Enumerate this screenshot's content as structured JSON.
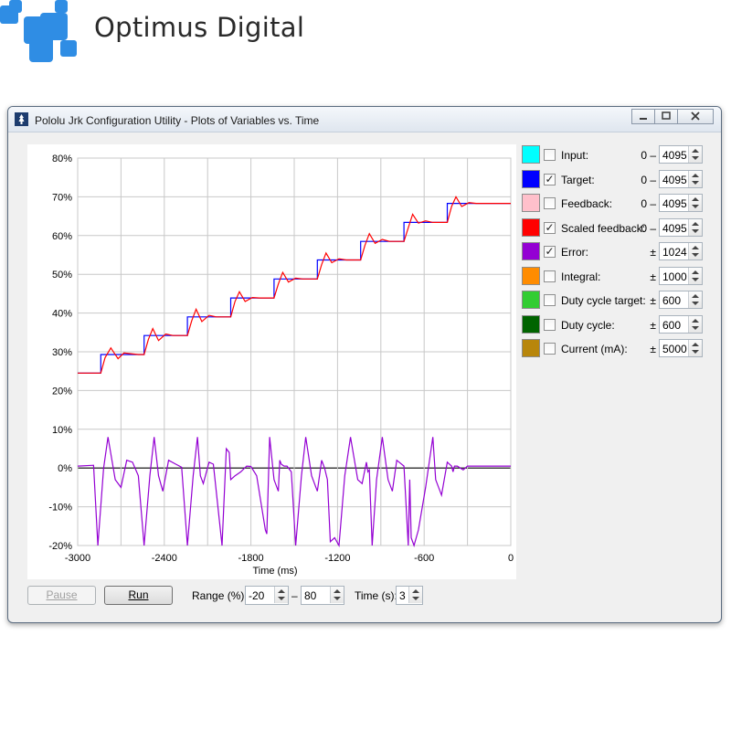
{
  "brand": {
    "name": "Optimus Digital",
    "logo_icon": "cross-pixel-logo",
    "logo_color": "#2f8de4"
  },
  "window": {
    "title": "Pololu Jrk Configuration Utility - Plots of Variables vs. Time",
    "icon": "pololu-app-icon",
    "controls": {
      "minimize_icon": "minimize-icon",
      "maximize_icon": "maximize-icon",
      "close_icon": "close-icon"
    }
  },
  "series": [
    {
      "label": "Input:",
      "checked": false,
      "color": "#00ffff",
      "prefix": "0 –",
      "value": "4095"
    },
    {
      "label": "Target:",
      "checked": true,
      "color": "#0000ff",
      "prefix": "0 –",
      "value": "4095"
    },
    {
      "label": "Feedback:",
      "checked": false,
      "color": "#ffc0cb",
      "prefix": "0 –",
      "value": "4095"
    },
    {
      "label": "Scaled feedback:",
      "checked": true,
      "color": "#ff0000",
      "prefix": "0 –",
      "value": "4095"
    },
    {
      "label": "Error:",
      "checked": true,
      "color": "#9400d3",
      "prefix": "±",
      "value": "1024"
    },
    {
      "label": "Integral:",
      "checked": false,
      "color": "#ff8c00",
      "prefix": "±",
      "value": "1000"
    },
    {
      "label": "Duty cycle target:",
      "checked": false,
      "color": "#32cd32",
      "prefix": "±",
      "value": "600"
    },
    {
      "label": "Duty cycle:",
      "checked": false,
      "color": "#006400",
      "prefix": "±",
      "value": "600"
    },
    {
      "label": "Current (mA):",
      "checked": false,
      "color": "#b8860b",
      "prefix": "±",
      "value": "5000"
    }
  ],
  "controls": {
    "pause_label": "Pause",
    "run_label": "Run",
    "range_label": "Range (%):",
    "range_min": "-20",
    "range_sep": "–",
    "range_max": "80",
    "time_label": "Time (s):",
    "time_value": "3"
  },
  "chart_data": {
    "type": "line",
    "xlabel": "Time (ms)",
    "ylabel": "",
    "xlim": [
      -3000,
      0
    ],
    "ylim": [
      -20,
      80
    ],
    "x_ticks": [
      "-3000",
      "-2400",
      "-1800",
      "-1200",
      "-600",
      "0"
    ],
    "y_ticks": [
      "80%",
      "70%",
      "60%",
      "50%",
      "40%",
      "30%",
      "20%",
      "10%",
      "0%",
      "-10%",
      "-20%"
    ],
    "grid": true,
    "series": [
      {
        "name": "Target",
        "color": "#0000ff",
        "x": [
          -3000,
          -2840,
          -2840,
          -2540,
          -2540,
          -2240,
          -2240,
          -1940,
          -1940,
          -1640,
          -1640,
          -1340,
          -1340,
          -1040,
          -1040,
          -740,
          -740,
          -440,
          -440,
          0
        ],
        "y": [
          24.5,
          24.5,
          29.3,
          29.3,
          34.2,
          34.2,
          39.0,
          39.0,
          43.9,
          43.9,
          48.8,
          48.8,
          53.7,
          53.7,
          58.5,
          58.5,
          63.4,
          63.4,
          68.3,
          68.3
        ]
      },
      {
        "name": "Scaled feedback",
        "color": "#ff0000",
        "x": [
          -3000,
          -2840,
          -2810,
          -2770,
          -2720,
          -2680,
          -2630,
          -2580,
          -2540,
          -2510,
          -2480,
          -2440,
          -2390,
          -2340,
          -2290,
          -2240,
          -2210,
          -2180,
          -2140,
          -2090,
          -2040,
          -1990,
          -1940,
          -1910,
          -1880,
          -1840,
          -1790,
          -1740,
          -1690,
          -1640,
          -1610,
          -1580,
          -1540,
          -1490,
          -1440,
          -1390,
          -1340,
          -1310,
          -1280,
          -1240,
          -1190,
          -1140,
          -1090,
          -1040,
          -1010,
          -980,
          -940,
          -890,
          -840,
          -790,
          -740,
          -710,
          -680,
          -640,
          -590,
          -540,
          -490,
          -440,
          -410,
          -380,
          -340,
          -290,
          -240,
          0
        ],
        "y": [
          24.5,
          24.5,
          28.5,
          31.0,
          28.2,
          29.7,
          29.5,
          29.3,
          29.3,
          33.2,
          36.0,
          32.9,
          34.6,
          34.2,
          34.2,
          34.2,
          38.0,
          41.0,
          37.8,
          39.4,
          39.0,
          39.0,
          39.0,
          43.0,
          45.5,
          43.0,
          44.0,
          43.9,
          43.9,
          43.9,
          47.5,
          50.5,
          48.0,
          49.0,
          48.8,
          48.8,
          48.8,
          52.5,
          55.5,
          53.0,
          54.0,
          53.7,
          53.7,
          53.7,
          57.5,
          60.5,
          58.0,
          59.0,
          58.5,
          58.5,
          58.5,
          62.0,
          65.5,
          63.2,
          63.8,
          63.4,
          63.4,
          63.4,
          67.5,
          70.0,
          67.5,
          68.5,
          68.3,
          68.3
        ]
      },
      {
        "name": "Error",
        "color": "#9400d3",
        "x": [
          -3000,
          -2890,
          -2860,
          -2820,
          -2790,
          -2740,
          -2700,
          -2660,
          -2620,
          -2580,
          -2540,
          -2500,
          -2470,
          -2440,
          -2410,
          -2370,
          -2320,
          -2280,
          -2240,
          -2200,
          -2170,
          -2150,
          -2130,
          -2090,
          -2060,
          -2000,
          -1970,
          -1950,
          -1940,
          -1910,
          -1870,
          -1830,
          -1800,
          -1760,
          -1700,
          -1690,
          -1670,
          -1640,
          -1610,
          -1600,
          -1590,
          -1570,
          -1550,
          -1520,
          -1490,
          -1450,
          -1420,
          -1380,
          -1340,
          -1310,
          -1300,
          -1290,
          -1270,
          -1250,
          -1220,
          -1190,
          -1150,
          -1110,
          -1060,
          -1030,
          -1000,
          -990,
          -980,
          -960,
          -930,
          -890,
          -850,
          -820,
          -790,
          -740,
          -710,
          -700,
          -690,
          -670,
          -640,
          -590,
          -540,
          -520,
          -480,
          -440,
          -410,
          -400,
          -390,
          -370,
          -330,
          -300,
          0
        ],
        "y": [
          0.5,
          0.7,
          -20,
          0,
          8,
          -3,
          -5,
          2,
          1.5,
          -2,
          -20,
          -2,
          8,
          -2,
          -6,
          2,
          1,
          0.2,
          -20,
          -2,
          8,
          -2,
          -4,
          1.5,
          1,
          -20,
          5,
          4,
          -3,
          -2,
          -1,
          0.5,
          0.4,
          -2,
          -16,
          -17,
          8,
          -3,
          -6,
          2,
          1,
          0.5,
          0.5,
          -1,
          -20,
          -2,
          8,
          -2,
          -6,
          2,
          1,
          0,
          -3,
          -19,
          -18,
          -20,
          -2,
          8,
          -3,
          -4,
          1.5,
          -1,
          -0.5,
          -20,
          -3,
          8,
          -3,
          -6,
          2,
          0.5,
          -20,
          -3,
          -18,
          -20,
          -16,
          -5,
          8,
          -3,
          -7,
          1.5,
          0.5,
          -1,
          0.5,
          0.5,
          -0.5,
          0.5,
          0.5
        ]
      }
    ]
  }
}
